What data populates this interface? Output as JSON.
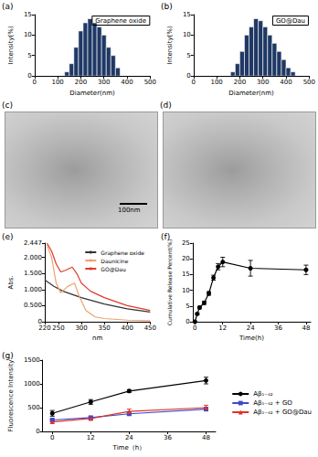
{
  "chart_data": [
    {
      "type": "histogram",
      "annotation": "(a)",
      "title": "Graphene oxide",
      "x_label": "Diameter(nm)",
      "y_label": "Intensity(%)",
      "bins": [
        130,
        150,
        170,
        190,
        210,
        230,
        250,
        270,
        290,
        310,
        330,
        350,
        370
      ],
      "counts": [
        1,
        3,
        7,
        11,
        13,
        14,
        13,
        12,
        10,
        7,
        5,
        2
      ],
      "color": "#1f3864",
      "xlim": [
        0,
        500
      ],
      "xticks": [
        0,
        100,
        200,
        300,
        400,
        500
      ],
      "ylim": [
        0,
        15
      ],
      "yticks": [
        0,
        5,
        10,
        15
      ]
    },
    {
      "type": "histogram",
      "annotation": "(b)",
      "title": "GO@Dau",
      "x_label": "Diameter(nm)",
      "y_label": "Intensity(%)",
      "bins": [
        160,
        180,
        200,
        220,
        240,
        260,
        280,
        300,
        320,
        340,
        360,
        380,
        400,
        420,
        440
      ],
      "counts": [
        1,
        3,
        6,
        10,
        12,
        14,
        13.5,
        12,
        10,
        8,
        6,
        4,
        2,
        1
      ],
      "color": "#1f3864",
      "xlim": [
        0,
        500
      ],
      "xticks": [
        0,
        100,
        200,
        300,
        400,
        500
      ],
      "ylim": [
        0,
        15
      ],
      "yticks": [
        0,
        5,
        10,
        15
      ]
    },
    {
      "type": "line",
      "annotation": "(e)",
      "x_label": "nm",
      "y_label": "Abs.",
      "legend": "upper right",
      "xlim": [
        220,
        450
      ],
      "xticks": [
        220,
        250,
        300,
        350,
        400,
        450
      ],
      "ylim": [
        0,
        2.447
      ],
      "yticks": [
        0,
        {
          "value": 0.5,
          "label": "0.500"
        },
        {
          "value": 1,
          "label": "1.000"
        },
        {
          "value": 1.5,
          "label": "1.500"
        },
        {
          "value": 2,
          "label": "2.000"
        },
        2.447
      ],
      "series": [
        {
          "name": "Graphene oxide",
          "color": "#333333",
          "marker": "none",
          "x": [
            220,
            240,
            260,
            280,
            300,
            350,
            400,
            450
          ],
          "values": [
            1.3,
            1.1,
            0.95,
            0.85,
            0.75,
            0.55,
            0.4,
            0.3
          ]
        },
        {
          "name": "Daunicine",
          "color": "#f0a070",
          "marker": "none",
          "x": [
            225,
            235,
            245,
            255,
            270,
            285,
            295,
            310,
            330,
            350,
            400,
            450
          ],
          "values": [
            2.4,
            2.0,
            1.2,
            0.9,
            1.1,
            1.2,
            0.8,
            0.35,
            0.15,
            0.1,
            0.05,
            0.03
          ]
        },
        {
          "name": "GO@Dau",
          "color": "#e03a2a",
          "marker": "none",
          "x": [
            225,
            235,
            245,
            255,
            265,
            280,
            290,
            300,
            320,
            350,
            400,
            450
          ],
          "values": [
            2.447,
            2.2,
            1.8,
            1.55,
            1.6,
            1.7,
            1.5,
            1.2,
            0.95,
            0.75,
            0.5,
            0.35
          ]
        }
      ]
    },
    {
      "type": "line",
      "annotation": "(f)",
      "x_label": "Time(h)",
      "y_label": "Cumulative Release Percent(%)",
      "xlim": [
        -1,
        50
      ],
      "xticks": [
        0,
        12,
        24,
        36,
        48
      ],
      "ylim": [
        0,
        25
      ],
      "yticks": [
        0,
        5,
        10,
        15,
        20,
        25
      ],
      "series": [
        {
          "color": "#000000",
          "marker": "circle",
          "x": [
            0,
            1,
            2,
            4,
            6,
            8,
            10,
            12,
            24,
            48
          ],
          "values": [
            0,
            2.5,
            4.5,
            6,
            9,
            14,
            17.5,
            19,
            17,
            16.5
          ],
          "errors": [
            0,
            0.3,
            0.4,
            0.5,
            0.6,
            0.8,
            1,
            1.5,
            2.5,
            1.5
          ]
        }
      ]
    },
    {
      "type": "line",
      "annotation": "(g)",
      "x_label": "Time（h）",
      "y_label": "Fluorescence Intensity",
      "legend": "right",
      "xlim": [
        -3,
        51
      ],
      "xticks": [
        0,
        12,
        24,
        36,
        48
      ],
      "ylim": [
        0,
        1500
      ],
      "yticks": [
        0,
        500,
        1000,
        1500
      ],
      "series": [
        {
          "name": "Aβ₁₋₄₂",
          "color": "#000000",
          "marker": "circle",
          "x": [
            0,
            12,
            24,
            48
          ],
          "values": [
            380,
            620,
            850,
            1070
          ],
          "errors": [
            60,
            50,
            30,
            70
          ]
        },
        {
          "name": "Aβ₁₋₄₂ + GO",
          "color": "#3b4bc8",
          "marker": "square",
          "x": [
            0,
            12,
            24,
            48
          ],
          "values": [
            240,
            290,
            370,
            470
          ],
          "errors": [
            20,
            20,
            30,
            40
          ]
        },
        {
          "name": "Aβ₁₋₄₂ + GO@Dau",
          "color": "#e0302a",
          "marker": "triangle",
          "x": [
            0,
            12,
            24,
            48
          ],
          "values": [
            200,
            270,
            420,
            500
          ],
          "errors": [
            30,
            30,
            50,
            50
          ]
        }
      ]
    }
  ],
  "images": [
    {
      "annotation": "(c)",
      "scale_bar": "100nm"
    },
    {
      "annotation": "(d)"
    }
  ]
}
